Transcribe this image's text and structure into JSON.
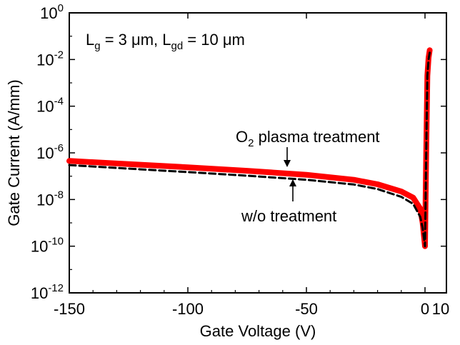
{
  "chart_data": {
    "type": "line",
    "xlabel": "Gate Voltage (V)",
    "ylabel": "Gate Current (A/mm)",
    "xlim": [
      -150,
      10
    ],
    "ylim": [
      1e-12,
      1
    ],
    "yscale": "log",
    "x_ticks": [
      -150,
      -100,
      -50,
      0,
      10
    ],
    "x_tick_labels": [
      "-150",
      "-100",
      "-50",
      "0",
      "10"
    ],
    "y_ticks": [
      {
        "base": "10",
        "exp": "0",
        "value": 1
      },
      {
        "base": "10",
        "exp": "-2",
        "value": 0.01
      },
      {
        "base": "10",
        "exp": "-4",
        "value": 0.0001
      },
      {
        "base": "10",
        "exp": "-6",
        "value": 1e-06
      },
      {
        "base": "10",
        "exp": "-8",
        "value": 1e-08
      },
      {
        "base": "10",
        "exp": "-10",
        "value": 1e-10
      },
      {
        "base": "10",
        "exp": "-12",
        "value": 1e-12
      }
    ],
    "grid": false,
    "series": [
      {
        "name": "O2 plasma treatment",
        "color": "#ff0000",
        "style": "solid",
        "x": [
          -150,
          -125,
          -100,
          -75,
          -50,
          -30,
          -20,
          -10,
          -5,
          -2,
          -1,
          0,
          0.5,
          1,
          1.5,
          2
        ],
        "y": [
          4.5e-07,
          3.3e-07,
          2.4e-07,
          1.7e-07,
          1.15e-07,
          7e-08,
          4.5e-08,
          2.2e-08,
          1.2e-08,
          4e-09,
          1e-09,
          1e-10,
          1e-06,
          0.002,
          0.012,
          0.025
        ]
      },
      {
        "name": "w/o treatment",
        "color": "#000000",
        "style": "dashed",
        "x": [
          -150,
          -125,
          -100,
          -75,
          -50,
          -30,
          -20,
          -10,
          -5,
          -2,
          -1,
          0,
          0.5,
          1,
          1.5,
          2
        ],
        "y": [
          3e-07,
          2.1e-07,
          1.5e-07,
          1.05e-07,
          7e-08,
          4.4e-08,
          2.8e-08,
          1.3e-08,
          6.5e-09,
          1.8e-09,
          6e-10,
          1e-10,
          1e-06,
          0.002,
          0.01,
          0.02
        ]
      }
    ],
    "annotations": {
      "device_params": {
        "L1": "L",
        "s1": "g",
        "mid": " = 3 μm, L",
        "s2": "gd",
        "end": " = 10 μm"
      },
      "o2_label": {
        "pre": "O",
        "sub": "2",
        "post": " plasma treatment"
      },
      "wo_label": "w/o treatment"
    }
  }
}
